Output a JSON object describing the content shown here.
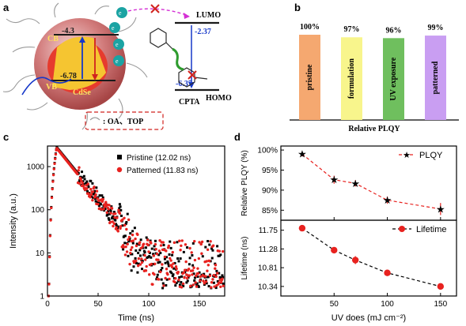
{
  "panel_labels": {
    "a": "a",
    "b": "b",
    "c": "c",
    "d": "d"
  },
  "panel_a": {
    "cb_label": "CB",
    "vb_label": "VB",
    "cdse_label": "CdSe",
    "cb_value": "-4.3",
    "vb_value": "-6.78",
    "lumo_label": "LUMO",
    "homo_label": "HOMO",
    "lumo_value": "-2.37",
    "homo_value": "-6.37",
    "cpta_label": "CPTA",
    "electron_label": "e",
    "electron_sup": "-",
    "ligand_text": ": OA、TOP"
  },
  "panel_b": {
    "xlabel": "Relative PLQY",
    "bars": [
      {
        "label": "pristine",
        "value": 100,
        "value_text": "100%",
        "color": "#f5a870"
      },
      {
        "label": "formulation",
        "value": 97,
        "value_text": "97%",
        "color": "#f8f58c"
      },
      {
        "label": "UV exposure",
        "value": 96,
        "value_text": "96%",
        "color": "#6fbf5e"
      },
      {
        "label": "patterned",
        "value": 99,
        "value_text": "99%",
        "color": "#c99ef2"
      }
    ]
  },
  "chart_data": [
    {
      "type": "scatter",
      "panel": "c",
      "xlabel": "Time (ns)",
      "ylabel": "Intensity (a.u.)",
      "xlim": [
        0,
        175
      ],
      "ylim": [
        1,
        3000
      ],
      "yscale": "log",
      "xticks": [
        "0",
        "50",
        "100",
        "150"
      ],
      "yticks": [
        "1",
        "10",
        "100",
        "1000"
      ],
      "legend_position": "top-right",
      "series": [
        {
          "name": "Pristine (12.02 ns)",
          "color": "#000000",
          "marker": "square",
          "peak_time": 9,
          "peak_intensity": 2800,
          "lifetime": 12.02,
          "noise_floor": 10
        },
        {
          "name": "Patterned (11.83 ns)",
          "color": "#e8221f",
          "marker": "circle",
          "peak_time": 9,
          "peak_intensity": 2700,
          "lifetime": 11.83,
          "noise_floor": 10
        }
      ]
    },
    {
      "type": "line",
      "panel": "d-top",
      "ylabel": "Relative  PLQY (%)",
      "x": [
        20,
        50,
        70,
        100,
        150
      ],
      "ylim": [
        82.5,
        101
      ],
      "yticks": [
        "100%",
        "95%",
        "90%",
        "85%"
      ],
      "legend_position": "top-right",
      "series": [
        {
          "name": "PLQY",
          "color": "#e8221f",
          "marker": "star",
          "values": [
            99.0,
            92.6,
            91.7,
            87.5,
            85.3
          ],
          "errors": [
            0.6,
            1.0,
            0.8,
            0.9,
            1.5
          ]
        }
      ]
    },
    {
      "type": "line",
      "panel": "d-bottom",
      "xlabel": "UV does (mJ cm⁻²)",
      "ylabel": "Lifetime (ns)",
      "x": [
        20,
        50,
        70,
        100,
        150
      ],
      "xlim": [
        0,
        165
      ],
      "xticks": [
        "50",
        "100",
        "150"
      ],
      "ylim": [
        10.1,
        12.0
      ],
      "yticks": [
        "11.75",
        "11.28",
        "10.81",
        "10.34"
      ],
      "legend_position": "top-right",
      "series": [
        {
          "name": "Lifetime",
          "color": "#e8221f",
          "marker": "circle",
          "values": [
            11.8,
            11.25,
            11.0,
            10.68,
            10.34
          ],
          "errors": [
            0.07,
            0.06,
            0.1,
            0.06,
            0.07
          ]
        }
      ]
    }
  ]
}
